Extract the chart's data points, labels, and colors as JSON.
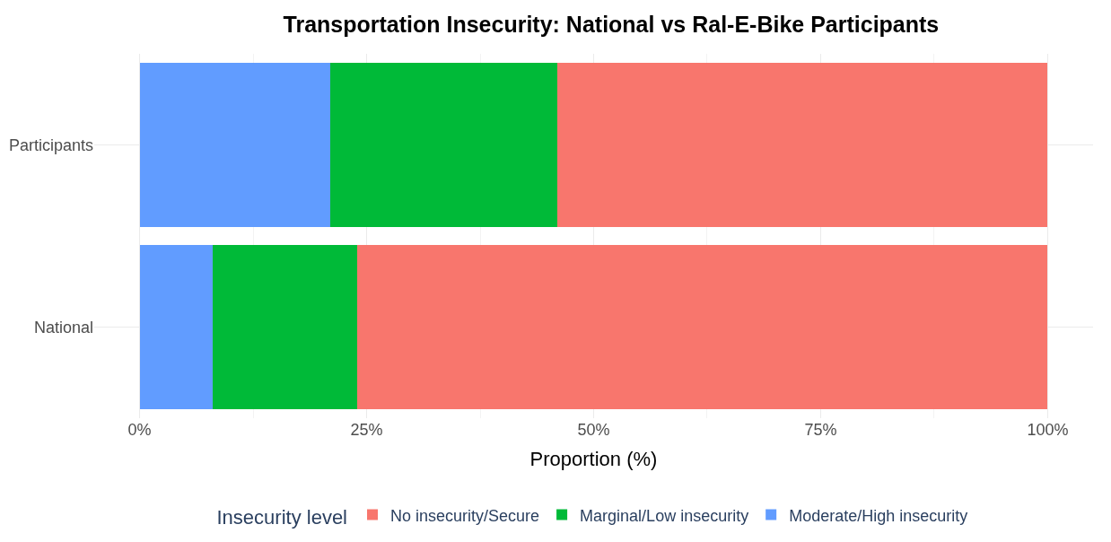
{
  "chart_data": {
    "type": "bar",
    "title": "Transportation Insecurity: National vs Ral-E-Bike Participants",
    "orientation": "horizontal",
    "stacked": true,
    "categories": [
      "Participants",
      "National"
    ],
    "series": [
      {
        "name": "Moderate/High insecurity",
        "color": "#619cff",
        "values": [
          21,
          8
        ]
      },
      {
        "name": "Marginal/Low insecurity",
        "color": "#00ba38",
        "values": [
          25,
          16
        ]
      },
      {
        "name": "No insecurity/Secure",
        "color": "#f8766d",
        "values": [
          54,
          76
        ]
      }
    ],
    "xlabel": "Proportion (%)",
    "legend_title": "Insecurity level",
    "xlim": [
      -5,
      105
    ],
    "xticks": [
      {
        "value": 0,
        "label": "0%"
      },
      {
        "value": 25,
        "label": "25%"
      },
      {
        "value": 50,
        "label": "50%"
      },
      {
        "value": 75,
        "label": "75%"
      },
      {
        "value": 100,
        "label": "100%"
      }
    ],
    "grid": true,
    "legend": "bottom"
  }
}
